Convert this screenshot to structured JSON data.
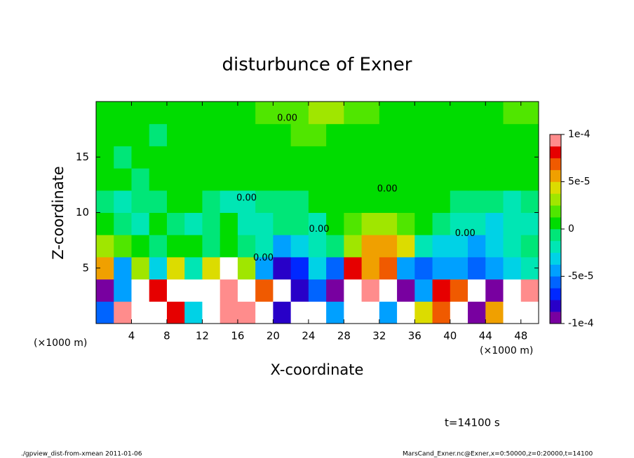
{
  "chart_data": {
    "type": "heatmap",
    "title": "disturbunce of Exner",
    "xlabel": "X-coordinate",
    "ylabel": "Z-coordinate",
    "x_unit": "(×1000 m)",
    "time_label": "t=14100 s",
    "footer_left": "./gpview_dist-from-xmean  2011-01-06",
    "footer_right": "MarsCand_Exner.nc@Exner,x=0:50000,z=0:20000,t=14100",
    "xlim": [
      0,
      50
    ],
    "xticks": [
      4,
      8,
      12,
      16,
      20,
      24,
      28,
      32,
      36,
      40,
      44,
      48
    ],
    "ylim": [
      0,
      20
    ],
    "yticks": [
      5,
      10,
      15
    ],
    "x": [
      1,
      3,
      5,
      7,
      9,
      11,
      13,
      15,
      17,
      19,
      21,
      23,
      25,
      27,
      29,
      31,
      33,
      35,
      37,
      39,
      41,
      43,
      45,
      47,
      49
    ],
    "y": [
      1,
      3,
      5,
      7,
      9,
      11,
      13,
      15,
      17,
      19
    ],
    "z": [
      [
        -6e-05,
        9e-05,
        0.00012,
        -0.00011,
        8e-05,
        -3e-05,
        0.00012,
        0.0001,
        9e-05,
        0.00012,
        -8e-05,
        -0.00012,
        -0.00011,
        -4e-05,
        0.00012,
        0.00011,
        -5e-05,
        -0.00011,
        4e-05,
        7e-05,
        -0.00012,
        -0.0001,
        6e-05,
        0.00012,
        0.00011
      ],
      [
        -9e-05,
        -4e-05,
        0.00012,
        8e-05,
        -0.00011,
        0.00012,
        0.00012,
        9e-05,
        0.00012,
        7e-05,
        -0.00012,
        -8e-05,
        -6e-05,
        -9e-05,
        0.00012,
        0.0001,
        -0.00012,
        -9e-05,
        -5e-05,
        8e-05,
        7e-05,
        -0.00012,
        -9e-05,
        0.00012,
        0.0001
      ],
      [
        5e-05,
        -5e-05,
        3e-05,
        -3e-05,
        4e-05,
        -2e-05,
        4e-05,
        0.00011,
        3e-05,
        -5e-05,
        -8e-05,
        -7e-05,
        -3e-05,
        -6e-05,
        8e-05,
        6e-05,
        7e-05,
        -5e-05,
        -6e-05,
        -5e-05,
        -4e-05,
        -6e-05,
        -4e-05,
        -3e-05,
        -2e-05
      ],
      [
        3e-05,
        2e-05,
        1e-05,
        -1e-05,
        0,
        1e-05,
        -1e-05,
        0,
        -1e-05,
        -2e-05,
        -4e-05,
        -3e-05,
        -2e-05,
        -1e-05,
        3e-05,
        5e-05,
        6e-05,
        4e-05,
        -2e-05,
        -3e-05,
        -3e-05,
        -4e-05,
        -3e-05,
        -2e-05,
        -1e-05
      ],
      [
        1e-05,
        -1e-05,
        -2e-05,
        0,
        -1e-05,
        -2e-05,
        -1e-05,
        0,
        -2e-05,
        -2e-05,
        -1e-05,
        -1e-05,
        -2e-05,
        0,
        2e-05,
        3e-05,
        3e-05,
        2e-05,
        0,
        -1e-05,
        -2e-05,
        -2e-05,
        -3e-05,
        -2e-05,
        -2e-05
      ],
      [
        -1e-05,
        -2e-05,
        -1e-05,
        -1e-05,
        0,
        0,
        -1e-05,
        -2e-05,
        -2e-05,
        -1e-05,
        -1e-05,
        -1e-05,
        0,
        1e-05,
        1e-05,
        1e-05,
        1e-05,
        0,
        0,
        0,
        -1e-05,
        -1e-05,
        -1e-05,
        -2e-05,
        -1e-05
      ],
      [
        0,
        0,
        -1e-05,
        0,
        0,
        1e-05,
        0,
        0,
        0,
        0,
        0,
        1e-05,
        1e-05,
        1e-05,
        1e-05,
        1e-05,
        1e-05,
        1e-05,
        1e-05,
        1e-05,
        1e-05,
        1e-05,
        0,
        0,
        1e-05
      ],
      [
        0,
        -1e-05,
        0,
        0,
        0,
        0,
        0,
        0,
        0,
        1e-05,
        1e-05,
        1e-05,
        1e-05,
        1e-05,
        1e-05,
        1e-05,
        1e-05,
        1e-05,
        1e-05,
        1e-05,
        1e-05,
        0,
        0,
        0,
        0
      ],
      [
        1e-05,
        1e-05,
        0,
        -1e-05,
        0,
        0,
        0,
        0,
        0,
        1e-05,
        1e-05,
        2e-05,
        2e-05,
        1e-05,
        1e-05,
        1e-05,
        1e-05,
        1e-05,
        1e-05,
        1e-05,
        1e-05,
        1e-05,
        1e-05,
        1e-05,
        1e-05
      ],
      [
        1e-05,
        1e-05,
        1e-05,
        1e-05,
        1e-05,
        1e-05,
        1e-05,
        1e-05,
        1e-05,
        2e-05,
        2e-05,
        2e-05,
        3e-05,
        3e-05,
        2e-05,
        2e-05,
        1e-05,
        1e-05,
        1e-05,
        1e-05,
        1e-05,
        1e-05,
        1e-05,
        2e-05,
        2e-05
      ]
    ],
    "clim": [
      -0.0001,
      0.0001
    ],
    "colors": [
      "#7800a0",
      "#2800c8",
      "#0028ff",
      "#0064ff",
      "#00a0ff",
      "#00d2e6",
      "#00e6b4",
      "#00e678",
      "#00dc00",
      "#50e600",
      "#a0e600",
      "#dcdc00",
      "#f0a000",
      "#f05a00",
      "#e60000",
      "#ff8c8c"
    ],
    "over_color": "#ffffff",
    "colorbar_ticks": [
      {
        "value": 0.0001,
        "label": "1e-4"
      },
      {
        "value": 5e-05,
        "label": "5e-5"
      },
      0,
      {
        "value": -5e-05,
        "label": "-5e-5"
      },
      {
        "value": -0.0001,
        "label": "-1e-4"
      }
    ],
    "contour_labels": [
      {
        "text": "0.00",
        "x": 21.6,
        "z": 18.5
      },
      {
        "text": "0.00",
        "x": 17.0,
        "z": 11.3
      },
      {
        "text": "0.00",
        "x": 32.9,
        "z": 12.1
      },
      {
        "text": "0.00",
        "x": 41.7,
        "z": 8.1
      },
      {
        "text": "0.00",
        "x": 25.2,
        "z": 8.5
      },
      {
        "text": "0.00",
        "x": 18.9,
        "z": 5.9
      }
    ]
  }
}
